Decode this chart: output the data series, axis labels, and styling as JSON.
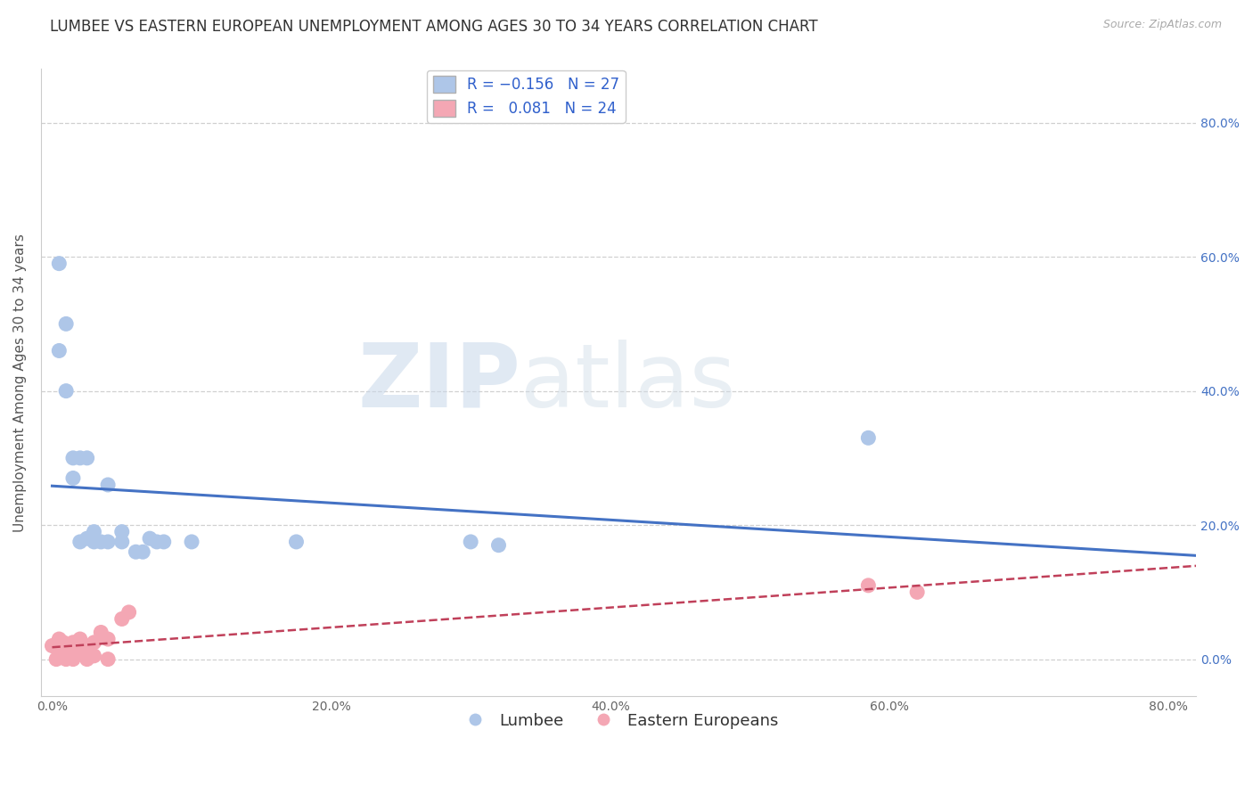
{
  "title": "LUMBEE VS EASTERN EUROPEAN UNEMPLOYMENT AMONG AGES 30 TO 34 YEARS CORRELATION CHART",
  "source": "Source: ZipAtlas.com",
  "ylabel": "Unemployment Among Ages 30 to 34 years",
  "xlim": [
    -0.008,
    0.82
  ],
  "ylim": [
    -0.055,
    0.88
  ],
  "xticks": [
    0.0,
    0.2,
    0.4,
    0.6,
    0.8
  ],
  "xticklabels": [
    "0.0%",
    "20.0%",
    "40.0%",
    "60.0%",
    "80.0%"
  ],
  "ytick_positions": [
    0.0,
    0.2,
    0.4,
    0.6,
    0.8
  ],
  "yticklabels_right": [
    "0.0%",
    "20.0%",
    "40.0%",
    "60.0%",
    "80.0%"
  ],
  "lumbee_R": -0.156,
  "lumbee_N": 27,
  "eastern_R": 0.081,
  "eastern_N": 24,
  "lumbee_color": "#aec6e8",
  "lumbee_line_color": "#4472c4",
  "eastern_color": "#f4a7b4",
  "eastern_line_color": "#c0405a",
  "background_color": "#ffffff",
  "watermark_zip": "ZIP",
  "watermark_atlas": "atlas",
  "lumbee_x": [
    0.005,
    0.005,
    0.01,
    0.01,
    0.015,
    0.015,
    0.02,
    0.02,
    0.025,
    0.025,
    0.03,
    0.03,
    0.035,
    0.04,
    0.04,
    0.05,
    0.05,
    0.06,
    0.065,
    0.07,
    0.075,
    0.08,
    0.1,
    0.175,
    0.3,
    0.32,
    0.585
  ],
  "lumbee_y": [
    0.59,
    0.46,
    0.5,
    0.4,
    0.3,
    0.27,
    0.3,
    0.175,
    0.18,
    0.3,
    0.175,
    0.19,
    0.175,
    0.175,
    0.26,
    0.175,
    0.19,
    0.16,
    0.16,
    0.18,
    0.175,
    0.175,
    0.175,
    0.175,
    0.175,
    0.17,
    0.33
  ],
  "eastern_x": [
    0.0,
    0.003,
    0.005,
    0.005,
    0.008,
    0.01,
    0.01,
    0.012,
    0.015,
    0.015,
    0.018,
    0.02,
    0.02,
    0.025,
    0.025,
    0.03,
    0.03,
    0.035,
    0.04,
    0.04,
    0.05,
    0.055,
    0.585,
    0.62
  ],
  "eastern_y": [
    0.02,
    0.0,
    0.015,
    0.03,
    0.025,
    0.0,
    0.02,
    0.02,
    0.0,
    0.025,
    0.01,
    0.02,
    0.03,
    0.0,
    0.02,
    0.005,
    0.025,
    0.04,
    0.0,
    0.03,
    0.06,
    0.07,
    0.11,
    0.1
  ],
  "grid_color": "#d0d0d0",
  "title_fontsize": 12,
  "axis_label_fontsize": 11,
  "tick_fontsize": 10,
  "legend_fontsize": 12
}
